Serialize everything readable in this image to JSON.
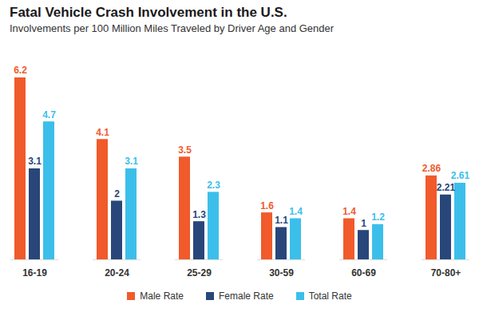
{
  "chart_data": {
    "type": "bar",
    "title": "Fatal Vehicle Crash Involvement in the U.S.",
    "subtitle": "Involvements per 100 Million Miles Traveled by Driver Age and Gender",
    "categories": [
      "16-19",
      "20-24",
      "25-29",
      "30-59",
      "60-69",
      "70-80+"
    ],
    "series": [
      {
        "name": "Male Rate",
        "color": "#f15a2b",
        "values": [
          6.2,
          4.1,
          3.5,
          1.6,
          1.4,
          2.86
        ]
      },
      {
        "name": "Female Rate",
        "color": "#28467a",
        "values": [
          3.1,
          2,
          1.3,
          1.1,
          1,
          2.21
        ]
      },
      {
        "name": "Total Rate",
        "color": "#3bbfea",
        "values": [
          4.7,
          3.1,
          2.3,
          1.4,
          1.2,
          2.61
        ]
      }
    ],
    "ylim": [
      0,
      6.2
    ],
    "yticks": [],
    "data_labels": true,
    "tick_labels": "x",
    "grid": false,
    "legend": "bottom"
  }
}
